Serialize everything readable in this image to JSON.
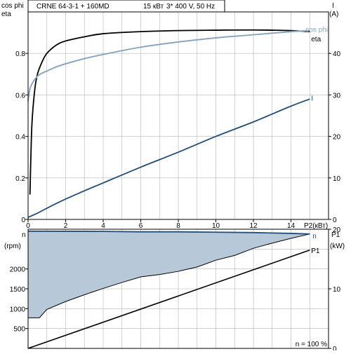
{
  "header": {
    "title": "CRNE 64-3-1 + 160MD",
    "power": "15 кВт",
    "supply": "3* 400 V, 50 Hz"
  },
  "colors": {
    "eta": "#000000",
    "cos_phi": "#8aa6bf",
    "current": "#1f4e7a",
    "speed_line": "#1f4e7a",
    "speed_fill": "#b7c8d9",
    "p1": "#000000",
    "grid": "#b4b4b4"
  },
  "chart_data": [
    {
      "type": "line",
      "id": "upper",
      "left_axis": {
        "labels": [
          "cos phi",
          "eta"
        ],
        "ylim": [
          0,
          1
        ],
        "ticks": [
          0,
          0.2,
          0.4,
          0.6,
          0.8
        ]
      },
      "right_axis": {
        "labels": [
          "I",
          "(A)"
        ],
        "ylim": [
          0,
          50
        ],
        "ticks": [
          0,
          10,
          20,
          30,
          40
        ]
      },
      "x_axis": {
        "label": "P2(кВт)",
        "xlim": [
          0,
          16
        ],
        "ticks": [
          0,
          2,
          4,
          6,
          8,
          10,
          12,
          14
        ]
      },
      "series": [
        {
          "name": "eta",
          "axis": "left",
          "color_key": "eta",
          "x": [
            0.1,
            0.2,
            0.35,
            0.5,
            0.75,
            1,
            1.5,
            2,
            3,
            4,
            6,
            8,
            10,
            12,
            13,
            14,
            15
          ],
          "y": [
            0.12,
            0.45,
            0.62,
            0.7,
            0.76,
            0.8,
            0.84,
            0.86,
            0.88,
            0.895,
            0.905,
            0.91,
            0.912,
            0.913,
            0.912,
            0.91,
            0.905
          ]
        },
        {
          "name": "cos phi",
          "axis": "left",
          "color_key": "cos_phi",
          "x": [
            0,
            0.1,
            0.25,
            0.5,
            0.75,
            1,
            1.5,
            2,
            3,
            4,
            6,
            8,
            10,
            12,
            14,
            15
          ],
          "y": [
            0.57,
            0.63,
            0.66,
            0.69,
            0.705,
            0.715,
            0.735,
            0.75,
            0.775,
            0.795,
            0.83,
            0.855,
            0.875,
            0.89,
            0.905,
            0.91
          ]
        },
        {
          "name": "I",
          "axis": "right",
          "color_key": "current",
          "x": [
            0,
            0.5,
            1,
            2,
            3,
            4,
            6,
            8,
            10,
            12,
            14,
            15
          ],
          "y": [
            0.5,
            1.5,
            2.7,
            4.9,
            6.9,
            8.8,
            12.6,
            16.2,
            20,
            23.5,
            27.3,
            29
          ]
        }
      ]
    },
    {
      "type": "area",
      "id": "lower",
      "left_axis": {
        "labels": [
          "n",
          "(rpm)"
        ],
        "ylim": [
          0,
          3000
        ],
        "ticks": [
          500,
          1000,
          1500,
          2000
        ]
      },
      "right_axis": {
        "labels": [
          "P1",
          "(kW)"
        ],
        "ylim": [
          0,
          20
        ],
        "ticks": [
          0,
          10,
          20
        ]
      },
      "x_axis": {
        "xlim": [
          0,
          16
        ]
      },
      "annotation": "n  = 100 %",
      "series": [
        {
          "name": "n",
          "axis": "left",
          "color_key": "speed_line",
          "fill_key": "speed_fill",
          "fill_bottom": true,
          "x": [
            0,
            2,
            4,
            6,
            8,
            10,
            12,
            13,
            14,
            15
          ],
          "y": [
            2950,
            2948,
            2945,
            2935,
            2935,
            2925,
            2915,
            2905,
            2895,
            2880
          ],
          "bottom_x": [
            15,
            14,
            13,
            12,
            11,
            10,
            9,
            8,
            7,
            6,
            5,
            4,
            3,
            2,
            1,
            0.6,
            0
          ],
          "bottom_y": [
            2880,
            2770,
            2650,
            2520,
            2340,
            2220,
            2050,
            1940,
            1860,
            1800,
            1660,
            1510,
            1350,
            1180,
            980,
            770,
            770
          ]
        },
        {
          "name": "P1",
          "axis": "right",
          "color_key": "p1",
          "x": [
            0,
            15
          ],
          "y": [
            0,
            16.5
          ]
        }
      ]
    }
  ]
}
